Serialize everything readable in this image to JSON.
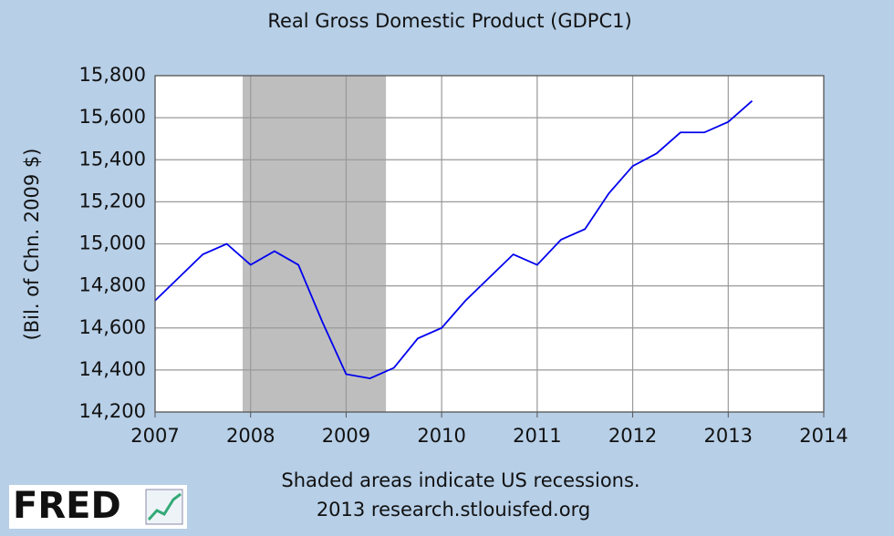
{
  "chart_data": {
    "type": "line",
    "title": "Real Gross Domestic Product (GDPC1)",
    "y_label": "(Bil. of Chn. 2009 $)",
    "note": "Shaded areas indicate US recessions.",
    "source": "2013 research.stlouisfed.org",
    "logo": "FRED",
    "x": [
      2007,
      2007.25,
      2007.5,
      2007.75,
      2008,
      2008.25,
      2008.5,
      2008.75,
      2009,
      2009.25,
      2009.5,
      2009.75,
      2010,
      2010.25,
      2010.5,
      2010.75,
      2011,
      2011.25,
      2011.5,
      2011.75,
      2012,
      2012.25,
      2012.5,
      2012.75,
      2013,
      2013.25
    ],
    "series": [
      {
        "name": "GDPC1",
        "color": "#0000ee",
        "values": [
          14730,
          14840,
          14950,
          15000,
          14900,
          14965,
          14900,
          14630,
          14380,
          14360,
          14410,
          14550,
          14600,
          14730,
          14840,
          14950,
          14900,
          15020,
          15070,
          15240,
          15370,
          15430,
          15530,
          15530,
          15580,
          15680
        ]
      }
    ],
    "recessions": [
      [
        2007.917,
        2009.417
      ]
    ],
    "recession_color": "#bebebe",
    "xlim": [
      2007,
      2014
    ],
    "xticks": [
      2007,
      2008,
      2009,
      2010,
      2011,
      2012,
      2013,
      2014
    ],
    "ylim": [
      14200,
      15800
    ],
    "yticks": [
      {
        "value": 14200,
        "label": "14,200"
      },
      {
        "value": 14400,
        "label": "14,400"
      },
      {
        "value": 14600,
        "label": "14,600"
      },
      {
        "value": 14800,
        "label": "14,800"
      },
      {
        "value": 15000,
        "label": "15,000"
      },
      {
        "value": 15200,
        "label": "15,200"
      },
      {
        "value": 15400,
        "label": "15,400"
      },
      {
        "value": 15600,
        "label": "15,600"
      },
      {
        "value": 15800,
        "label": "15,800"
      }
    ],
    "grid": true
  }
}
